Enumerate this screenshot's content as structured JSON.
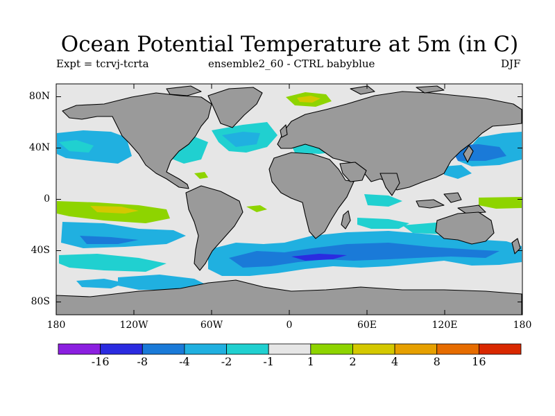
{
  "title": "Ocean Potential Temperature at 5m (in C)",
  "subtitle_left": "Expt = tcrvj-tcrta",
  "subtitle_center": "ensemble2_60 - CTRL babyblue",
  "subtitle_right": "DJF",
  "y_axis_labels": [
    "80N",
    "40N",
    "0",
    "40S",
    "80S"
  ],
  "x_axis_labels": [
    "180",
    "120W",
    "60W",
    "0",
    "60E",
    "120E",
    "180"
  ],
  "colorbar": {
    "colors": [
      "#8b1fe0",
      "#2b2be0",
      "#1a7ad8",
      "#20b0e0",
      "#20d0d0",
      "#e6e6e6",
      "#8ed400",
      "#d4c800",
      "#e6a000",
      "#e66c00",
      "#d92800"
    ],
    "labels": [
      "-16",
      "-8",
      "-4",
      "-2",
      "-1",
      "1",
      "2",
      "4",
      "8",
      "16"
    ]
  },
  "colors": {
    "land": "#9a9a9a",
    "near_zero": "#e6e6e6",
    "coast": "#000000"
  }
}
